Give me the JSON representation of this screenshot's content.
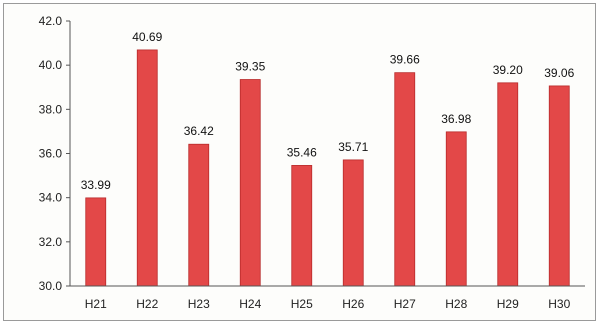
{
  "chart_data": {
    "type": "bar",
    "title": "",
    "xlabel": "",
    "ylabel": "",
    "categories": [
      "H21",
      "H22",
      "H23",
      "H24",
      "H25",
      "H26",
      "H27",
      "H28",
      "H29",
      "H30"
    ],
    "values": [
      33.99,
      40.69,
      36.42,
      39.35,
      35.46,
      35.71,
      39.66,
      36.98,
      39.2,
      39.06
    ],
    "data_labels": [
      "33.99",
      "40.69",
      "36.42",
      "39.35",
      "35.46",
      "35.71",
      "39.66",
      "36.98",
      "39.20",
      "39.06"
    ],
    "ylim": [
      30.0,
      42.0
    ],
    "yticks": [
      "30.0",
      "32.0",
      "34.0",
      "36.0",
      "38.0",
      "40.0",
      "42.0"
    ],
    "ytick_values": [
      30,
      32,
      34,
      36,
      38,
      40,
      42
    ],
    "grid": false,
    "legend": "none",
    "colors": {
      "bar_fill": "#e34848",
      "bar_edge": "#b82a2a",
      "axis": "#555555"
    }
  }
}
